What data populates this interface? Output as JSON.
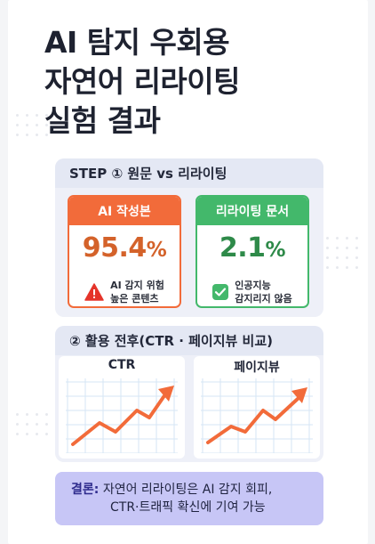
{
  "title": {
    "line1": "AI 탐지 우회용",
    "line2": "자연어 리라이팅",
    "line3": "실험 결과"
  },
  "step1": {
    "header": "STEP ① 원문 vs 리라이팅",
    "original": {
      "tag": "AI 작성본",
      "value": "95.4",
      "unit": "%",
      "note_line1": "AI 감지 위험",
      "note_line2": "높은 콘텐츠",
      "icon": "warning-icon"
    },
    "rewritten": {
      "tag": "리라이팅 문서",
      "value": "2.1",
      "unit": "%",
      "note_line1": "인공지능",
      "note_line2": "감지리지 않음",
      "icon": "check-icon"
    }
  },
  "step2": {
    "header": "② 활용 전후(CTR · 페이지뷰 비교)",
    "charts": [
      {
        "title": "CTR",
        "type": "line",
        "trend": "up",
        "color": "#f26b3a"
      },
      {
        "title": "페이지뷰",
        "type": "line",
        "trend": "up",
        "color": "#f26b3a"
      }
    ]
  },
  "conclusion": {
    "label": "결론:",
    "line1": "자연어 리라이팅은 AI 감지 회피,",
    "line2": "CTR·트래픽 확신에 기여 가능"
  },
  "colors": {
    "orange": "#f26b3a",
    "green": "#43b86b",
    "panel": "#eef0f8",
    "conclusion_bg": "#c7c6f6",
    "grid": "#d6e6f4"
  }
}
